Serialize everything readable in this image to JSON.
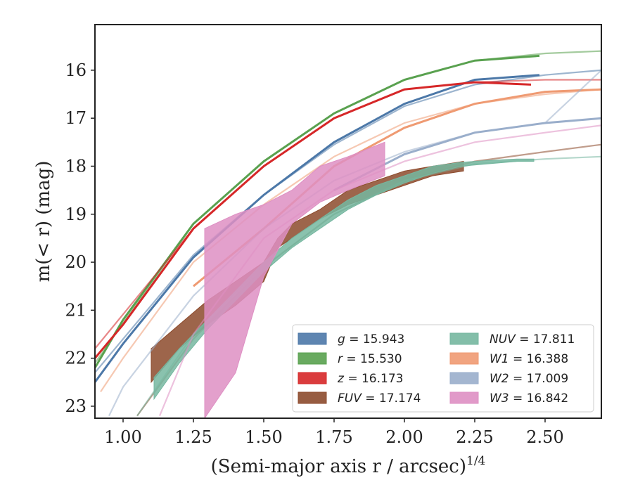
{
  "chart_data": {
    "type": "line",
    "xlabel": "(Semi-major axis r / arcsec)",
    "xlabel_superscript": "1/4",
    "ylabel": "m(< r) (mag)",
    "xlim": [
      0.9,
      2.7
    ],
    "ylim": [
      23.25,
      15.05
    ],
    "y_inverted": true,
    "grid": false,
    "legend_position": "lower-right",
    "x_ticks": [
      1.0,
      1.25,
      1.5,
      1.75,
      2.0,
      2.25,
      2.5
    ],
    "x_tick_labels": [
      "1.00",
      "1.25",
      "1.50",
      "1.75",
      "2.00",
      "2.25",
      "2.50"
    ],
    "y_ticks": [
      16,
      17,
      18,
      19,
      20,
      21,
      22,
      23
    ],
    "y_tick_labels": [
      "16",
      "17",
      "18",
      "19",
      "20",
      "21",
      "22",
      "23"
    ],
    "series": [
      {
        "name": "g",
        "value": "15.943",
        "color": "#4c78a8",
        "data": {
          "x": [
            0.9,
            1.0,
            1.25,
            1.5,
            1.75,
            2.0,
            2.25,
            2.48
          ],
          "y": [
            22.5,
            21.7,
            19.9,
            18.6,
            17.5,
            16.7,
            16.2,
            16.1
          ]
        },
        "model": {
          "x": [
            0.9,
            1.25,
            1.5,
            1.75,
            2.0,
            2.25,
            2.5,
            2.7
          ],
          "y": [
            22.3,
            19.85,
            18.6,
            17.55,
            16.75,
            16.3,
            16.1,
            16.0
          ]
        }
      },
      {
        "name": "r",
        "value": "15.530",
        "color": "#59a14f",
        "data": {
          "x": [
            0.9,
            1.0,
            1.25,
            1.5,
            1.75,
            2.0,
            2.25,
            2.48
          ],
          "y": [
            22.2,
            21.2,
            19.2,
            17.9,
            16.9,
            16.2,
            15.8,
            15.7
          ]
        },
        "model": {
          "x": [
            0.9,
            1.25,
            1.5,
            1.75,
            2.0,
            2.25,
            2.5,
            2.7
          ],
          "y": [
            22.1,
            19.2,
            17.9,
            16.9,
            16.2,
            15.8,
            15.65,
            15.6
          ]
        }
      },
      {
        "name": "z",
        "value": "16.173",
        "color": "#d62728",
        "data": {
          "x": [
            0.9,
            1.0,
            1.25,
            1.5,
            1.75,
            2.0,
            2.25,
            2.45
          ],
          "y": [
            22.0,
            21.3,
            19.3,
            18.0,
            17.0,
            16.4,
            16.25,
            16.3
          ]
        },
        "model": {
          "x": [
            0.9,
            1.25,
            1.5,
            1.75,
            2.0,
            2.25,
            2.5,
            2.7
          ],
          "y": [
            21.8,
            19.3,
            18.0,
            17.0,
            16.4,
            16.25,
            16.2,
            16.2
          ]
        }
      },
      {
        "name": "FUV",
        "value": "17.174",
        "color": "#8c4a2c",
        "band": {
          "x": [
            1.1,
            1.2,
            1.3,
            1.4,
            1.5,
            1.55,
            1.6,
            1.7,
            1.8,
            1.9,
            2.0,
            2.1,
            2.21
          ],
          "y_upper": [
            21.8,
            21.3,
            20.8,
            20.4,
            20.0,
            19.5,
            19.2,
            18.9,
            18.5,
            18.3,
            18.1,
            18.0,
            17.9
          ],
          "y_lower": [
            22.5,
            21.8,
            21.3,
            20.9,
            20.4,
            19.7,
            19.5,
            19.1,
            18.8,
            18.6,
            18.4,
            18.2,
            18.1
          ]
        },
        "model": {
          "x": [
            1.05,
            1.25,
            1.5,
            1.75,
            2.0,
            2.25,
            2.5,
            2.7
          ],
          "y": [
            23.2,
            21.6,
            20.1,
            19.0,
            18.3,
            17.9,
            17.7,
            17.55
          ]
        }
      },
      {
        "name": "NUV",
        "value": "17.811",
        "color": "#76b7a0",
        "band": {
          "x": [
            1.11,
            1.2,
            1.3,
            1.4,
            1.5,
            1.6,
            1.7,
            1.8,
            1.9,
            2.0,
            2.1,
            2.2,
            2.3,
            2.4,
            2.46
          ],
          "y_upper": [
            22.4,
            21.8,
            21.2,
            20.6,
            20.0,
            19.5,
            19.1,
            18.7,
            18.4,
            18.2,
            18.0,
            17.92,
            17.88,
            17.85,
            17.85
          ],
          "y_lower": [
            22.85,
            22.1,
            21.4,
            20.8,
            20.2,
            19.7,
            19.3,
            18.9,
            18.6,
            18.35,
            18.15,
            18.0,
            17.95,
            17.9,
            17.9
          ]
        },
        "model": {
          "x": [
            1.05,
            1.25,
            1.5,
            1.75,
            2.0,
            2.25,
            2.5,
            2.7
          ],
          "y": [
            23.2,
            21.5,
            20.1,
            19.0,
            18.3,
            17.95,
            17.85,
            17.8
          ]
        }
      },
      {
        "name": "W1",
        "value": "16.388",
        "color": "#ef9a72",
        "data": {
          "x": [
            1.25,
            1.5,
            1.75,
            2.0,
            2.25,
            2.5,
            2.7
          ],
          "y": [
            20.5,
            19.3,
            18.0,
            17.2,
            16.7,
            16.45,
            16.4
          ]
        },
        "model": {
          "x": [
            0.92,
            1.0,
            1.25,
            1.5,
            1.75,
            2.0,
            2.25,
            2.5,
            2.7
          ],
          "y": [
            22.7,
            22.0,
            20.0,
            18.8,
            17.8,
            17.1,
            16.7,
            16.5,
            16.4
          ]
        }
      },
      {
        "name": "W2",
        "value": "17.009",
        "color": "#9aaecb",
        "data": {
          "x": [
            1.75,
            2.0,
            2.25,
            2.5,
            2.7
          ],
          "y": [
            18.5,
            17.75,
            17.3,
            17.1,
            17.0
          ]
        },
        "model": {
          "x": [
            0.95,
            1.0,
            1.25,
            1.5,
            1.75,
            2.0,
            2.25,
            2.5,
            2.7
          ],
          "y": [
            23.2,
            22.6,
            20.7,
            19.3,
            18.3,
            17.7,
            17.3,
            17.1,
            16.0
          ]
        }
      },
      {
        "name": "W3",
        "value": "16.842",
        "color": "#de8fc3",
        "band": {
          "x": [
            1.29,
            1.4,
            1.5,
            1.6,
            1.7,
            1.8,
            1.93
          ],
          "y_upper": [
            19.3,
            19.0,
            18.8,
            18.5,
            18.0,
            17.8,
            17.5
          ],
          "y_lower": [
            23.25,
            22.3,
            20.3,
            19.2,
            18.75,
            18.5,
            18.2
          ]
        },
        "model": {
          "x": [
            1.13,
            1.25,
            1.5,
            1.75,
            2.0,
            2.25,
            2.5,
            2.7
          ],
          "y": [
            23.2,
            21.5,
            19.5,
            18.5,
            17.9,
            17.5,
            17.3,
            17.15
          ]
        }
      }
    ]
  }
}
